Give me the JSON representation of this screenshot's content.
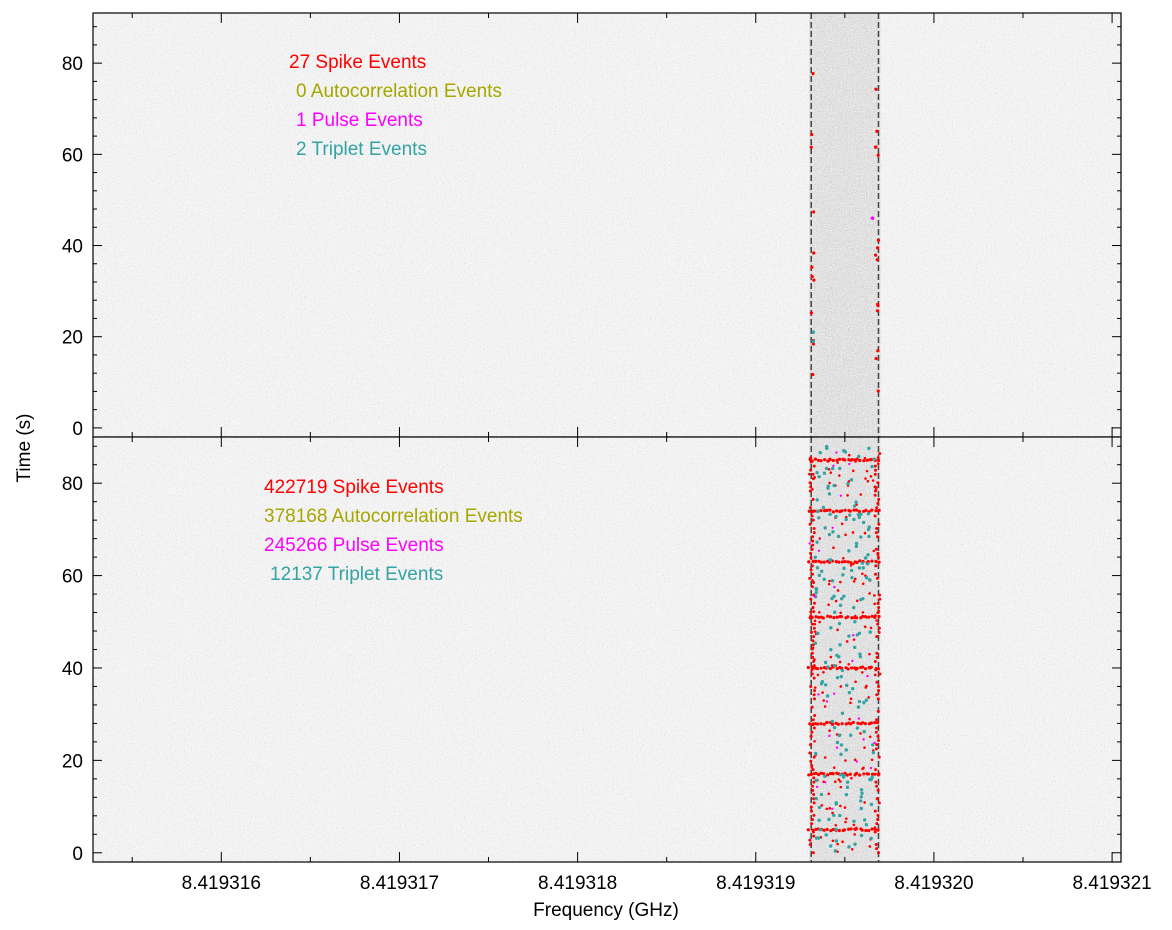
{
  "colors": {
    "spike": "#ff0000",
    "autocorrelation": "#a6a600",
    "pulse": "#ff00ff",
    "triplet": "#33a3a3",
    "background": "#d0d0d0",
    "noise": "#8a8a8a"
  },
  "chart_data": {
    "type": "scatter",
    "xlabel": "Frequency (GHz)",
    "ylabel": "Time (s)",
    "xlim": [
      8.41931528,
      8.41932105
    ],
    "x_ticks": [
      "8.419316",
      "8.419317",
      "8.419318",
      "8.419319",
      "8.419320",
      "8.419321"
    ],
    "x_tick_values": [
      8.419316,
      8.419317,
      8.419318,
      8.419319,
      8.41932,
      8.419321
    ],
    "signal_band": [
      8.4193193,
      8.4193197
    ],
    "grid": false,
    "panels": [
      {
        "ylim": [
          -2,
          91
        ],
        "y_ticks": [
          "0",
          "20",
          "40",
          "60",
          "80"
        ],
        "y_tick_values": [
          0,
          20,
          40,
          60,
          80
        ],
        "legend": [
          {
            "label": "27 Spike Events",
            "color_key": "spike",
            "count": 27
          },
          {
            "label": "0 Autocorrelation Events",
            "color_key": "autocorrelation",
            "count": 0
          },
          {
            "label": "1 Pulse Events",
            "color_key": "pulse",
            "count": 1
          },
          {
            "label": "2 Triplet Events",
            "color_key": "triplet",
            "count": 2
          }
        ]
      },
      {
        "ylim": [
          -2,
          90
        ],
        "y_ticks": [
          "0",
          "20",
          "40",
          "60",
          "80"
        ],
        "y_tick_values": [
          0,
          20,
          40,
          60,
          80
        ],
        "legend": [
          {
            "label": "422719 Spike Events",
            "color_key": "spike",
            "count": 422719
          },
          {
            "label": "378168 Autocorrelation Events",
            "color_key": "autocorrelation",
            "count": 378168
          },
          {
            "label": "245266 Pulse Events",
            "color_key": "pulse",
            "count": 245266
          },
          {
            "label": "12137 Triplet Events",
            "color_key": "triplet",
            "count": 12137
          }
        ]
      }
    ]
  }
}
